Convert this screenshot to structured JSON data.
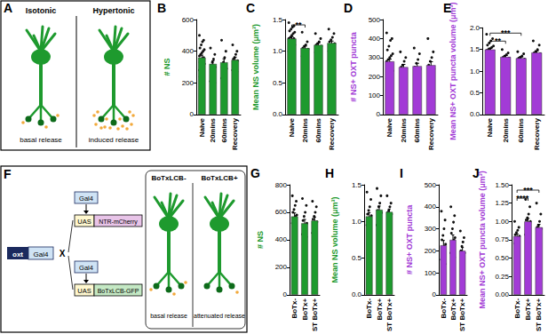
{
  "diagrams": [
    {
      "panel": "A",
      "columns": [
        {
          "label": "Isotonic",
          "release": "basal release"
        },
        {
          "label": "Hypertonic",
          "release": "induced release"
        }
      ]
    },
    {
      "panel": "F",
      "driver": "oxt",
      "gal4": "Gal4",
      "cross": "X",
      "crosses": [
        {
          "gal4": "Gal4",
          "uas": "UAS",
          "effector": "NTR-mCherry"
        },
        {
          "gal4": "Gal4",
          "uas": "UAS",
          "effector": "BoTxLCB-GFP"
        }
      ],
      "columns": [
        {
          "label": "BoTxLCB-",
          "release": "basal release"
        },
        {
          "label": "BoTxLCB+",
          "release": "attenuated release"
        }
      ]
    }
  ],
  "chart_data": [
    {
      "type": "bar",
      "title": "B",
      "ylabel": "# NS",
      "color": "#1e9a2e",
      "grid": false,
      "categories": [
        "Naive",
        "20mins",
        "60mins",
        "Recovery"
      ],
      "values": [
        360,
        320,
        330,
        345
      ],
      "errors": [
        15,
        20,
        22,
        18
      ],
      "points": [
        [
          500,
          470,
          460,
          440,
          420,
          410,
          400,
          390,
          380,
          370,
          360,
          350,
          340,
          330,
          320,
          310,
          300,
          290,
          280,
          270,
          260,
          250,
          240
        ],
        [
          420,
          380,
          350,
          330,
          310,
          300,
          280,
          260,
          240,
          210,
          200
        ],
        [
          470,
          400,
          360,
          330,
          300,
          290,
          280,
          270,
          240,
          230,
          220
        ],
        [
          440,
          400,
          380,
          360,
          350,
          340,
          330,
          320,
          300,
          280,
          270
        ]
      ],
      "ylim": [
        0,
        600
      ],
      "yticks": [
        0,
        200,
        400,
        600
      ],
      "annotations": []
    },
    {
      "type": "bar",
      "title": "C",
      "ylabel": "Mean NS volume (μm³)",
      "color": "#1e9a2e",
      "grid": false,
      "categories": [
        "Naive",
        "20mins",
        "60mins",
        "Recovery"
      ],
      "values": [
        1.2,
        1.05,
        1.1,
        1.13
      ],
      "errors": [
        0.03,
        0.03,
        0.03,
        0.03
      ],
      "points": [
        [
          1.45,
          1.4,
          1.38,
          1.35,
          1.32,
          1.3,
          1.28,
          1.25,
          1.22,
          1.2,
          1.2,
          1.18,
          1.15,
          1.12,
          1.1,
          1.08,
          1.05,
          1.02,
          1.0,
          0.98,
          0.95,
          0.92
        ],
        [
          1.3,
          1.15,
          1.1,
          1.08,
          1.05,
          1.03,
          1.0,
          0.98,
          0.95,
          0.92
        ],
        [
          1.28,
          1.2,
          1.15,
          1.12,
          1.1,
          1.08,
          1.05,
          1.02,
          1.0,
          0.98
        ],
        [
          1.35,
          1.28,
          1.22,
          1.18,
          1.15,
          1.12,
          1.1,
          1.08,
          1.05,
          1.0
        ]
      ],
      "ylim": [
        0,
        1.5
      ],
      "yticks": [
        {
          "value": 0,
          "label": "0.0"
        },
        0.5,
        {
          "value": 1,
          "label": "1.0"
        },
        1.5
      ],
      "annotations": [
        {
          "from": "Naive",
          "to": "20mins",
          "label": "**"
        }
      ]
    },
    {
      "type": "bar",
      "title": "D",
      "ylabel": "# NS+ OXT puncta",
      "color": "#a23bd6",
      "grid": false,
      "categories": [
        "Naive",
        "20mins",
        "60mins",
        "Recovery"
      ],
      "values": [
        280,
        250,
        255,
        260
      ],
      "errors": [
        12,
        14,
        15,
        18
      ],
      "points": [
        [
          430,
          400,
          390,
          360,
          340,
          320,
          310,
          300,
          290,
          280,
          270,
          260,
          250,
          240,
          230,
          220,
          210,
          200,
          190,
          180
        ],
        [
          330,
          300,
          280,
          260,
          250,
          240,
          230,
          210,
          200
        ],
        [
          350,
          320,
          290,
          270,
          250,
          240,
          230,
          210,
          190
        ],
        [
          400,
          330,
          300,
          280,
          260,
          240,
          230,
          200,
          190
        ]
      ],
      "ylim": [
        0,
        500
      ],
      "yticks": [
        0,
        100,
        200,
        300,
        400,
        500
      ],
      "annotations": []
    },
    {
      "type": "bar",
      "title": "E",
      "ylabel": "Mean NS+ OXT puncta volume (μm³)",
      "color": "#a23bd6",
      "grid": false,
      "categories": [
        "Naive",
        "20mins",
        "60mins",
        "Recovery"
      ],
      "values": [
        1.5,
        1.33,
        1.3,
        1.43
      ],
      "errors": [
        0.03,
        0.03,
        0.03,
        0.04
      ],
      "points": [
        [
          1.85,
          1.75,
          1.7,
          1.65,
          1.6,
          1.58,
          1.55,
          1.52,
          1.5,
          1.48,
          1.45,
          1.42,
          1.4,
          1.38,
          1.35,
          1.3,
          1.28,
          1.25,
          1.2
        ],
        [
          1.5,
          1.42,
          1.38,
          1.35,
          1.32,
          1.3,
          1.28,
          1.25,
          1.2
        ],
        [
          1.45,
          1.4,
          1.35,
          1.32,
          1.3,
          1.28,
          1.25,
          1.22
        ],
        [
          1.7,
          1.6,
          1.5,
          1.45,
          1.42,
          1.4,
          1.38,
          1.3,
          1.25
        ]
      ],
      "ylim": [
        0,
        2
      ],
      "yticks": [
        {
          "value": 0,
          "label": "0.0"
        },
        0.5,
        {
          "value": 1,
          "label": "1.0"
        },
        1.5,
        {
          "value": 2,
          "label": "2.0"
        }
      ],
      "annotations": [
        {
          "from": "Naive",
          "to": "20mins",
          "label": "**"
        },
        {
          "from": "Naive",
          "to": "60mins",
          "label": "***"
        }
      ]
    },
    {
      "type": "bar",
      "title": "G",
      "ylabel": "# NS",
      "color": "#1e9a2e",
      "grid": false,
      "categories": [
        "BoTx-",
        "BoTx+",
        "ST BoTx+"
      ],
      "values": [
        570,
        520,
        540
      ],
      "errors": [
        25,
        28,
        25
      ],
      "points": [
        [
          720,
          680,
          650,
          620,
          600,
          580,
          570,
          560,
          540,
          520,
          500,
          480,
          460
        ],
        [
          700,
          650,
          600,
          570,
          540,
          520,
          500,
          480,
          460,
          440,
          420
        ],
        [
          680,
          640,
          600,
          570,
          550,
          530,
          510,
          490,
          470,
          450
        ]
      ],
      "ylim": [
        0,
        800
      ],
      "yticks": [
        0,
        200,
        400,
        600,
        800
      ],
      "annotations": []
    },
    {
      "type": "bar",
      "title": "H",
      "ylabel": "Mean NS volume (μm³)",
      "color": "#1e9a2e",
      "grid": false,
      "categories": [
        "BoTx-",
        "BoTx+",
        "ST BoTx+"
      ],
      "values": [
        1.07,
        1.16,
        1.13
      ],
      "errors": [
        0.05,
        0.05,
        0.04
      ],
      "points": [
        [
          1.4,
          1.3,
          1.2,
          1.15,
          1.1,
          1.08,
          1.05,
          1.02,
          1.0,
          0.95,
          0.9,
          0.85
        ],
        [
          1.45,
          1.35,
          1.25,
          1.2,
          1.15,
          1.12,
          1.1,
          1.05,
          1.0,
          0.95
        ],
        [
          1.35,
          1.25,
          1.2,
          1.15,
          1.12,
          1.1,
          1.05,
          1.0,
          0.98
        ]
      ],
      "ylim": [
        0,
        1.5
      ],
      "yticks": [
        {
          "value": 0,
          "label": "0.0"
        },
        0.5,
        {
          "value": 1,
          "label": "1.0"
        },
        1.5
      ],
      "annotations": []
    },
    {
      "type": "bar",
      "title": "I",
      "ylabel": "# NS+ OXT puncta",
      "color": "#a23bd6",
      "grid": false,
      "categories": [
        "BoTx-",
        "BoTx+",
        "ST BoTx+"
      ],
      "values": [
        225,
        250,
        200
      ],
      "errors": [
        22,
        22,
        15
      ],
      "points": [
        [
          380,
          340,
          300,
          270,
          250,
          230,
          220,
          200,
          180,
          160,
          140,
          120
        ],
        [
          400,
          360,
          330,
          300,
          280,
          260,
          250,
          230,
          210,
          190,
          170,
          150
        ],
        [
          290,
          260,
          240,
          220,
          200,
          190,
          180,
          170,
          150
        ]
      ],
      "ylim": [
        0,
        500
      ],
      "yticks": [
        0,
        100,
        200,
        300,
        400,
        500
      ],
      "annotations": []
    },
    {
      "type": "bar",
      "title": "J",
      "ylabel": "Mean NS+ OXT puncta volume (μm³)",
      "color": "#a23bd6",
      "grid": false,
      "categories": [
        "BoTx-",
        "BoTx+",
        "ST BoTx+"
      ],
      "values": [
        0.8,
        1.0,
        0.92
      ],
      "errors": [
        0.03,
        0.04,
        0.04
      ],
      "points": [
        [
          1.0,
          0.92,
          0.88,
          0.85,
          0.82,
          0.8,
          0.78,
          0.75,
          0.72,
          0.7
        ],
        [
          1.3,
          1.2,
          1.1,
          1.05,
          1.02,
          1.0,
          0.95,
          0.9,
          0.85,
          0.82
        ],
        [
          1.25,
          1.1,
          1.0,
          0.95,
          0.92,
          0.9,
          0.85,
          0.8,
          0.75
        ]
      ],
      "ylim": [
        0,
        1.5
      ],
      "yticks": [
        {
          "value": 0,
          "label": "0.00"
        },
        0.25,
        {
          "value": 0.5,
          "label": "0.50"
        },
        0.75,
        {
          "value": 1,
          "label": "1.00"
        },
        1.25,
        {
          "value": 1.5,
          "label": "1.50"
        }
      ],
      "annotations": [
        {
          "from": "BoTx-",
          "to": "BoTx+",
          "label": "****"
        },
        {
          "from": "BoTx-",
          "to": "ST BoTx+",
          "label": "***"
        }
      ]
    }
  ]
}
